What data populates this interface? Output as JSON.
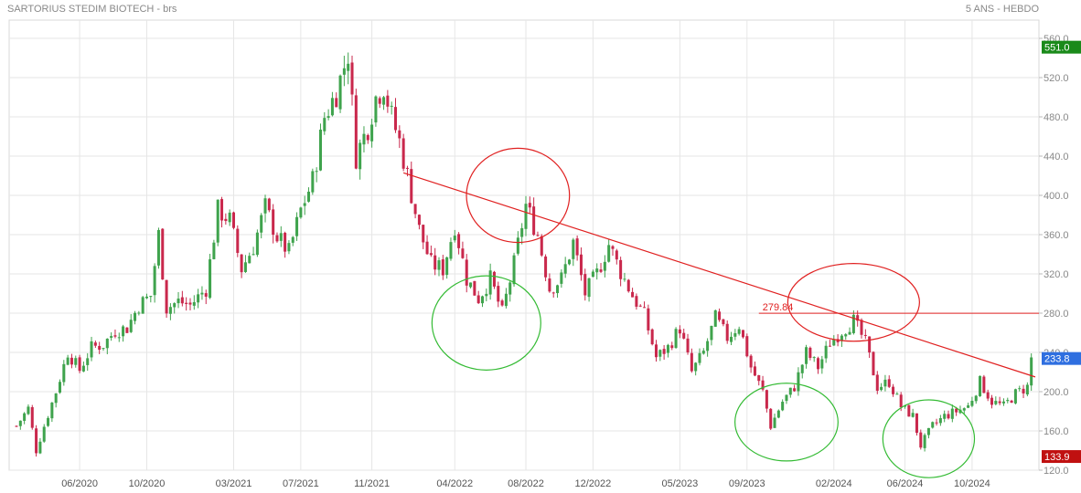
{
  "header": {
    "title": "SARTORIUS STEDIM BIOTECH - brs",
    "period": "5 ANS - HEBDO"
  },
  "colors": {
    "up": "#3fa34d",
    "down": "#c9284c",
    "grid": "#e6e6e6",
    "axis_text": "#888888",
    "trend": "#e02020",
    "green_circle": "#34bb34",
    "red_circle": "#e02020"
  },
  "chart_data": {
    "type": "candlestick",
    "y_axis": {
      "range": [
        120,
        560
      ],
      "ticks": [
        560,
        520,
        480,
        440,
        400,
        360,
        320,
        280,
        240,
        200,
        160,
        120
      ],
      "tick_labels": [
        "560.0",
        "520.0",
        "480.0",
        "440.0",
        "400.0",
        "360.0",
        "320.0",
        "280.0",
        "240.0",
        "200.0",
        "160.0",
        "120.0"
      ]
    },
    "x_axis": {
      "start": "2020-02-14",
      "end": "2025-01-17",
      "tick_dates": [
        "2020-06-05",
        "2020-10-02",
        "2021-03-05",
        "2021-07-02",
        "2021-11-05",
        "2022-04-01",
        "2022-08-05",
        "2022-12-02",
        "2023-05-05",
        "2023-09-01",
        "2024-02-02",
        "2024-06-07",
        "2024-10-04"
      ],
      "tick_labels": [
        "06/2020",
        "10/2020",
        "03/2021",
        "07/2021",
        "11/2021",
        "04/2022",
        "08/2022",
        "12/2022",
        "05/2023",
        "09/2023",
        "02/2024",
        "06/2024",
        "10/2024"
      ]
    },
    "price_badges": [
      {
        "label": "551.0",
        "value": 551,
        "color": "#1a8a1a"
      },
      {
        "label": "233.8",
        "value": 233.8,
        "color": "#2f6fe0"
      },
      {
        "label": "133.9",
        "value": 133.9,
        "color": "#c01010"
      }
    ],
    "hline": {
      "value": 279.84,
      "label": "279.84",
      "from_date": "2023-09-22"
    },
    "trendline": {
      "from": {
        "date": "2021-12-31",
        "value": 423
      },
      "to": {
        "date": "2025-01-24",
        "value": 215
      }
    },
    "highlights": [
      {
        "shape": "ellipse",
        "color": "green",
        "center_date": "2022-05-27",
        "center_value": 270,
        "w_weeks": 19,
        "h_value": 80
      },
      {
        "shape": "ellipse",
        "color": "red",
        "center_date": "2022-07-22",
        "center_value": 400,
        "w_weeks": 18,
        "h_value": 80
      },
      {
        "shape": "ellipse",
        "color": "green",
        "center_date": "2023-11-10",
        "center_value": 169,
        "w_weeks": 18,
        "h_value": 66
      },
      {
        "shape": "ellipse",
        "color": "red",
        "center_date": "2024-03-08",
        "center_value": 291,
        "w_weeks": 23,
        "h_value": 66
      },
      {
        "shape": "ellipse",
        "color": "green",
        "center_date": "2024-07-19",
        "center_value": 152,
        "w_weeks": 16,
        "h_value": 66
      }
    ],
    "series": [
      {
        "points": [
          [
            "2020-02-14",
            165
          ],
          [
            "2020-03-06",
            183
          ],
          [
            "2020-03-20",
            140
          ],
          [
            "2020-04-03",
            165
          ],
          [
            "2020-04-24",
            200
          ],
          [
            "2020-05-15",
            240
          ],
          [
            "2020-06-05",
            222
          ],
          [
            "2020-06-26",
            245
          ],
          [
            "2020-07-17",
            248
          ],
          [
            "2020-08-07",
            262
          ],
          [
            "2020-08-28",
            265
          ],
          [
            "2020-09-18",
            288
          ],
          [
            "2020-10-09",
            298
          ],
          [
            "2020-10-23",
            360
          ],
          [
            "2020-11-06",
            285
          ],
          [
            "2020-11-27",
            292
          ],
          [
            "2020-12-18",
            288
          ],
          [
            "2021-01-15",
            305
          ],
          [
            "2021-02-05",
            385
          ],
          [
            "2021-02-26",
            375
          ],
          [
            "2021-03-19",
            325
          ],
          [
            "2021-04-09",
            348
          ],
          [
            "2021-04-30",
            388
          ],
          [
            "2021-05-21",
            358
          ],
          [
            "2021-06-11",
            342
          ],
          [
            "2021-07-02",
            385
          ],
          [
            "2021-07-23",
            415
          ],
          [
            "2021-08-13",
            480
          ],
          [
            "2021-09-03",
            505
          ],
          [
            "2021-09-24",
            545
          ],
          [
            "2021-10-08",
            440
          ],
          [
            "2021-10-29",
            470
          ],
          [
            "2021-11-12",
            500
          ],
          [
            "2021-11-26",
            512
          ],
          [
            "2021-12-10",
            480
          ],
          [
            "2021-12-24",
            455
          ],
          [
            "2022-01-07",
            420
          ],
          [
            "2022-01-28",
            365
          ],
          [
            "2022-02-18",
            330
          ],
          [
            "2022-03-11",
            325
          ],
          [
            "2022-04-01",
            370
          ],
          [
            "2022-04-22",
            315
          ],
          [
            "2022-05-13",
            295
          ],
          [
            "2022-06-03",
            315
          ],
          [
            "2022-06-24",
            280
          ],
          [
            "2022-07-15",
            330
          ],
          [
            "2022-08-05",
            390
          ],
          [
            "2022-08-26",
            360
          ],
          [
            "2022-09-16",
            305
          ],
          [
            "2022-10-07",
            315
          ],
          [
            "2022-10-28",
            352
          ],
          [
            "2022-11-18",
            300
          ],
          [
            "2022-12-09",
            320
          ],
          [
            "2022-12-30",
            350
          ],
          [
            "2023-01-20",
            322
          ],
          [
            "2023-02-10",
            298
          ],
          [
            "2023-03-03",
            278
          ],
          [
            "2023-03-24",
            235
          ],
          [
            "2023-04-14",
            245
          ],
          [
            "2023-05-05",
            265
          ],
          [
            "2023-05-26",
            220
          ],
          [
            "2023-06-16",
            240
          ],
          [
            "2023-07-07",
            275
          ],
          [
            "2023-07-28",
            255
          ],
          [
            "2023-08-18",
            268
          ],
          [
            "2023-09-08",
            225
          ],
          [
            "2023-09-29",
            200
          ],
          [
            "2023-10-13",
            165
          ],
          [
            "2023-11-03",
            190
          ],
          [
            "2023-11-24",
            205
          ],
          [
            "2023-12-15",
            240
          ],
          [
            "2024-01-05",
            225
          ],
          [
            "2024-01-26",
            250
          ],
          [
            "2024-02-16",
            262
          ],
          [
            "2024-03-08",
            272
          ],
          [
            "2024-03-29",
            250
          ],
          [
            "2024-04-19",
            205
          ],
          [
            "2024-05-10",
            210
          ],
          [
            "2024-05-31",
            185
          ],
          [
            "2024-06-21",
            175
          ],
          [
            "2024-07-05",
            145
          ],
          [
            "2024-07-26",
            165
          ],
          [
            "2024-08-16",
            175
          ],
          [
            "2024-09-06",
            180
          ],
          [
            "2024-09-27",
            185
          ],
          [
            "2024-10-18",
            210
          ],
          [
            "2024-11-08",
            190
          ],
          [
            "2024-11-29",
            185
          ],
          [
            "2024-12-20",
            198
          ],
          [
            "2025-01-10",
            205
          ],
          [
            "2025-01-17",
            233.8
          ]
        ]
      }
    ]
  }
}
